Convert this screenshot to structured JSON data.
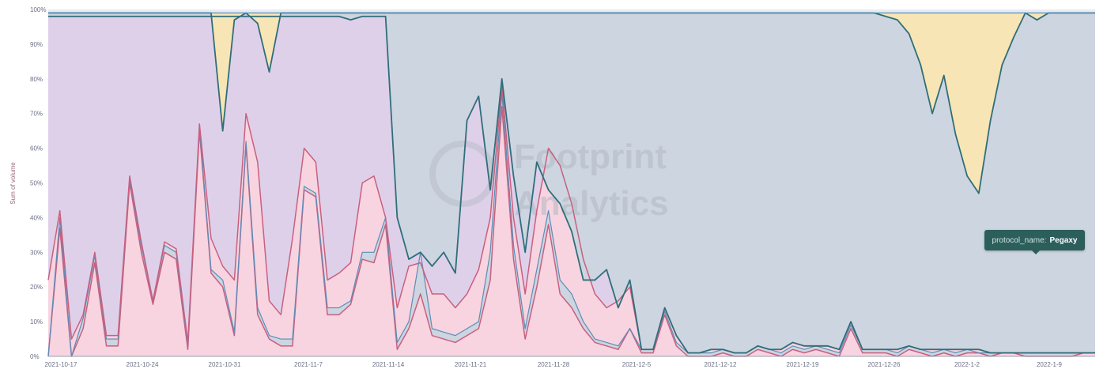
{
  "chart_data": {
    "type": "area",
    "stacked_percent": true,
    "ylabel": "Sum of volume",
    "yticks": [
      "0%",
      "10%",
      "20%",
      "30%",
      "40%",
      "50%",
      "60%",
      "70%",
      "80%",
      "90%",
      "100%"
    ],
    "xticks": [
      "2021-10-17",
      "2021-10-24",
      "2021-10-31",
      "2021-11-7",
      "2021-11-14",
      "2021-11-21",
      "2021-11-28",
      "2021-12-5",
      "2021-12-12",
      "2021-12-19",
      "2021-12-26",
      "2022-1-2",
      "2022-1-9"
    ],
    "watermark": [
      "Footprint",
      "Analytics"
    ],
    "tooltip": {
      "key": "protocol_name:",
      "value": "Pegaxy"
    },
    "colors": {
      "pink": "#f7d4e0",
      "pinkLine": "#c8607f",
      "lilac": "#dfd0ea",
      "steel": "#cdd5e0",
      "steelLine": "#2f6e7a",
      "sand": "#f7e5b5",
      "blue": "#5b8db8"
    },
    "series_count": 6,
    "points_per_series": 91
  }
}
